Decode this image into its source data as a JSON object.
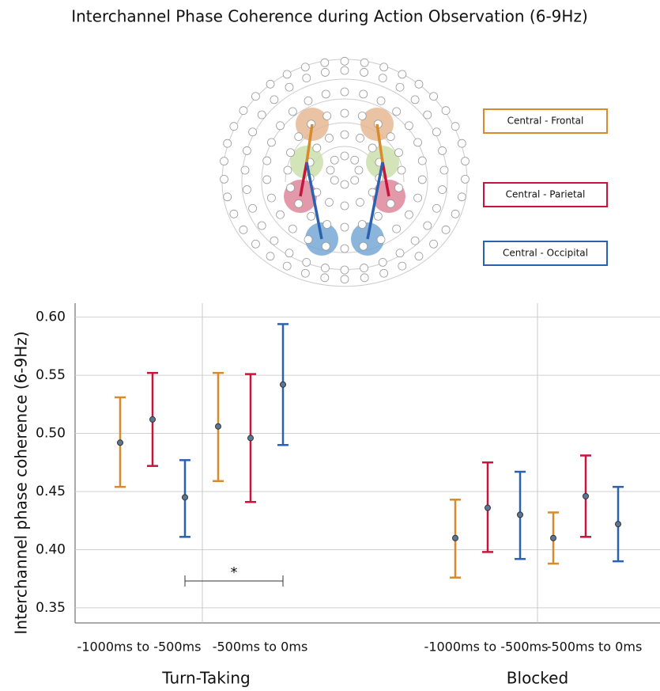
{
  "chart_data": {
    "type": "errorbar",
    "title": "Interchannel Phase Coherence during Action Observation (6-9Hz)",
    "y_label": "Interchannel phase coherence (6-9Hz)",
    "groups": [
      "Turn-Taking",
      "Blocked"
    ],
    "categories": [
      "-1000ms to -500ms",
      "-500ms to 0ms",
      "-1000ms to -500ms",
      "-500ms to 0ms"
    ],
    "series": [
      {
        "name": "Central - Frontal",
        "color": "#d98a2b",
        "values": [
          0.492,
          0.506,
          0.41,
          0.41
        ],
        "lower": [
          0.454,
          0.459,
          0.376,
          0.388
        ],
        "upper": [
          0.531,
          0.552,
          0.443,
          0.432
        ]
      },
      {
        "name": "Central - Parietal",
        "color": "#c8143c",
        "values": [
          0.512,
          0.496,
          0.436,
          0.446
        ],
        "lower": [
          0.472,
          0.441,
          0.398,
          0.411
        ],
        "upper": [
          0.552,
          0.551,
          0.475,
          0.481
        ]
      },
      {
        "name": "Central - Occipital",
        "color": "#2b62b0",
        "values": [
          0.445,
          0.542,
          0.43,
          0.422
        ],
        "lower": [
          0.411,
          0.49,
          0.392,
          0.39
        ],
        "upper": [
          0.477,
          0.594,
          0.467,
          0.454
        ]
      }
    ],
    "annotation": "*",
    "ylim": [
      0.337,
      0.612
    ],
    "yticks": [
      0.35,
      {
        "value": 0.4,
        "label": "0.40"
      },
      0.45,
      {
        "value": 0.5,
        "label": "0.50"
      },
      0.55,
      {
        "value": 0.6,
        "label": "0.60"
      }
    ],
    "grid": true
  }
}
